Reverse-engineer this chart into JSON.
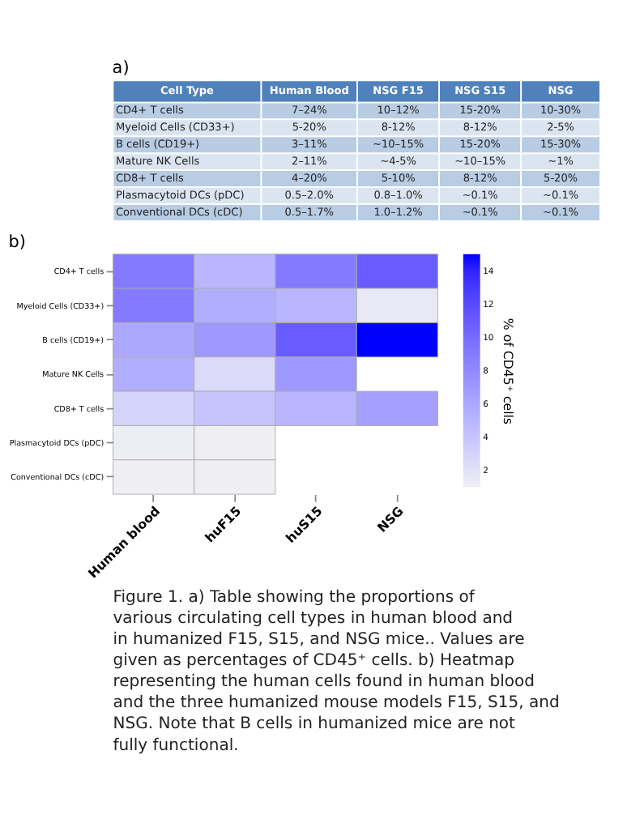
{
  "chart_data": [
    {
      "type": "other",
      "title": "a)",
      "categories": [
        "Cell Type",
        "Human Blood",
        "NSG F15",
        "NSG S15",
        "NSG"
      ],
      "cell_labels": [
        [
          "CD4+ T cells",
          "7–24%",
          "10–12%",
          "15-20%",
          "10-30%"
        ],
        [
          "Myeloid Cells (CD33+)",
          "5-20%",
          "8-12%",
          "8-12%",
          "2-5%"
        ],
        [
          "B cells (CD19+)",
          "3–11%",
          "~10–15%",
          "15-20%",
          "15-30%"
        ],
        [
          "Mature NK Cells",
          "2–11%",
          "~4-5%",
          "~10–15%",
          "~1%"
        ],
        [
          "CD8+ T cells",
          "4–20%",
          "5-10%",
          "8-12%",
          "5-20%"
        ],
        [
          "Plasmacytoid DCs (pDC)",
          "0.5–2.0%",
          "0.8–1.0%",
          "~0.1%",
          "~0.1%"
        ],
        [
          "Conventional DCs (cDC)",
          "0.5–1.7%",
          "1.0–1.2%",
          "~0.1%",
          "~0.1%"
        ]
      ]
    },
    {
      "type": "heatmap",
      "title": "b)",
      "categories": [
        "Human blood",
        "huF15",
        "huS15",
        "NSG"
      ],
      "y_categories": [
        "CD4+ T cells",
        "Myeloid Cells (CD33+)",
        "B cells (CD19+)",
        "Mature NK Cells",
        "CD8+ T cells",
        "Plasmacytoid DCs (pDC)",
        "Conventional DCs (cDC)"
      ],
      "cells": [
        [
          9,
          5,
          9,
          11
        ],
        [
          9,
          5.5,
          5,
          1.5
        ],
        [
          6,
          7,
          11,
          15
        ],
        [
          5.5,
          2.5,
          7,
          null
        ],
        [
          3,
          4,
          5,
          6.5
        ],
        [
          1.2,
          1.1,
          null,
          null
        ],
        [
          1.1,
          1.1,
          null,
          null
        ]
      ],
      "clim": [
        1,
        15
      ],
      "cticks": [
        2,
        4,
        6,
        8,
        10,
        12,
        14
      ],
      "clabel": "% of CD45⁺ cells",
      "annotations": [
        "Figure 1. a) Table showing the proportions of various circulating cell types in human blood and in humanized F15, S15, and NSG mice.. Values are given as percentages of CD45⁺ cells. b) Heatmap representing the human cells found in human blood and the three humanized mouse models F15, S15, and NSG. Note that B cells in humanized mice are not fully functional."
      ]
    }
  ]
}
